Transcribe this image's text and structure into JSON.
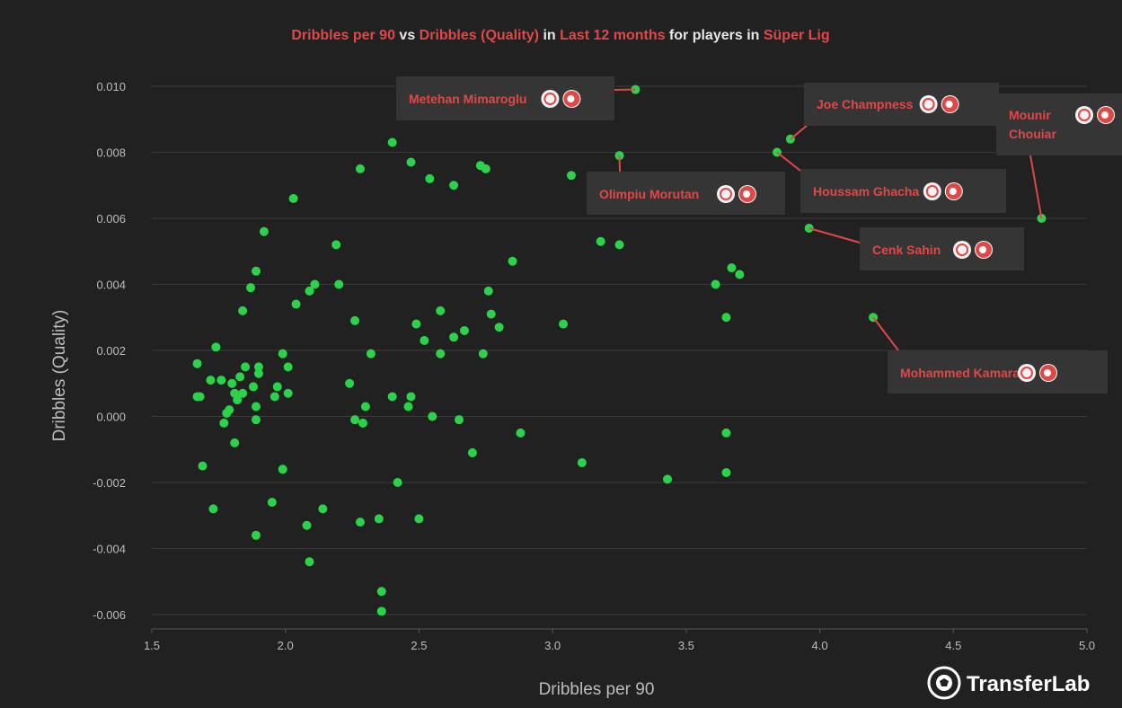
{
  "title": {
    "parts": [
      {
        "text": "Dribbles per 90",
        "accent": true
      },
      {
        "text": " vs ",
        "accent": false
      },
      {
        "text": "Dribbles (Quality)",
        "accent": true
      },
      {
        "text": " in ",
        "accent": false
      },
      {
        "text": "Last 12 months",
        "accent": true
      },
      {
        "text": " for players in ",
        "accent": false
      },
      {
        "text": "Süper Lig",
        "accent": true
      }
    ]
  },
  "colors": {
    "background": "#212121",
    "accent": "#e04848",
    "point": "#2bd34a",
    "grid": "#3a3a3a",
    "text_muted": "#bdbdbd",
    "annotation_bg": "#353535"
  },
  "logo": {
    "text": "TransferLab",
    "icon": "soccer-ball-icon"
  },
  "chart_data": {
    "type": "scatter",
    "title": "Dribbles per 90 vs Dribbles (Quality) in Last 12 months for players in Süper Lig",
    "xlabel": "Dribbles per 90",
    "ylabel": "Dribbles (Quality)",
    "xlim": [
      1.5,
      5.0
    ],
    "ylim": [
      -0.0065,
      0.0104
    ],
    "xticks": [
      {
        "value": 1.5,
        "label": "1.5"
      },
      {
        "value": 2.0,
        "label": "2.0"
      },
      {
        "value": 2.5,
        "label": "2.5"
      },
      {
        "value": 3.0,
        "label": "3.0"
      },
      {
        "value": 3.5,
        "label": "3.5"
      },
      {
        "value": 4.0,
        "label": "4.0"
      },
      {
        "value": 4.5,
        "label": "4.5"
      },
      {
        "value": 5.0,
        "label": "5.0"
      }
    ],
    "yticks": [
      {
        "value": 0.01,
        "label": "0.010"
      },
      {
        "value": 0.008,
        "label": "0.008"
      },
      {
        "value": 0.006,
        "label": "0.006"
      },
      {
        "value": 0.004,
        "label": "0.004"
      },
      {
        "value": 0.002,
        "label": "0.002"
      },
      {
        "value": 0.0,
        "label": "0.000"
      },
      {
        "value": -0.002,
        "label": "-0.002"
      },
      {
        "value": -0.004,
        "label": "-0.004"
      },
      {
        "value": -0.006,
        "label": "-0.006"
      }
    ],
    "grid": "horizontal",
    "points": [
      [
        1.67,
        0.0016
      ],
      [
        1.67,
        0.0006
      ],
      [
        1.68,
        0.0006
      ],
      [
        1.69,
        -0.0015
      ],
      [
        1.72,
        0.0011
      ],
      [
        1.73,
        -0.0028
      ],
      [
        1.74,
        0.0021
      ],
      [
        1.76,
        0.0011
      ],
      [
        1.77,
        -0.0002
      ],
      [
        1.78,
        0.0001
      ],
      [
        1.79,
        0.0002
      ],
      [
        1.8,
        0.001
      ],
      [
        1.81,
        -0.0008
      ],
      [
        1.81,
        0.0007
      ],
      [
        1.82,
        0.0005
      ],
      [
        1.83,
        0.0012
      ],
      [
        1.84,
        0.0032
      ],
      [
        1.84,
        0.0007
      ],
      [
        1.85,
        0.0015
      ],
      [
        1.87,
        0.0039
      ],
      [
        1.88,
        0.0009
      ],
      [
        1.89,
        0.0044
      ],
      [
        1.89,
        0.0003
      ],
      [
        1.89,
        -0.0001
      ],
      [
        1.89,
        -0.0036
      ],
      [
        1.9,
        0.0015
      ],
      [
        1.9,
        0.0013
      ],
      [
        1.92,
        0.0056
      ],
      [
        1.95,
        -0.0026
      ],
      [
        1.96,
        0.0006
      ],
      [
        1.97,
        0.0009
      ],
      [
        1.99,
        0.0019
      ],
      [
        1.99,
        -0.0016
      ],
      [
        2.01,
        0.0015
      ],
      [
        2.01,
        0.0007
      ],
      [
        2.03,
        0.0066
      ],
      [
        2.04,
        0.0034
      ],
      [
        2.08,
        -0.0033
      ],
      [
        2.09,
        0.0038
      ],
      [
        2.09,
        -0.0044
      ],
      [
        2.11,
        0.004
      ],
      [
        2.14,
        -0.0028
      ],
      [
        2.19,
        0.0052
      ],
      [
        2.2,
        0.004
      ],
      [
        2.24,
        0.001
      ],
      [
        2.26,
        0.0029
      ],
      [
        2.26,
        -0.0001
      ],
      [
        2.28,
        0.0075
      ],
      [
        2.28,
        -0.0032
      ],
      [
        2.29,
        -0.0002
      ],
      [
        2.3,
        0.0003
      ],
      [
        2.32,
        0.0019
      ],
      [
        2.35,
        -0.0031
      ],
      [
        2.36,
        -0.0053
      ],
      [
        2.36,
        -0.0059
      ],
      [
        2.4,
        0.0083
      ],
      [
        2.4,
        0.0006
      ],
      [
        2.42,
        -0.002
      ],
      [
        2.46,
        0.0003
      ],
      [
        2.47,
        0.0077
      ],
      [
        2.47,
        0.0006
      ],
      [
        2.49,
        0.0028
      ],
      [
        2.5,
        -0.0031
      ],
      [
        2.52,
        0.0023
      ],
      [
        2.54,
        0.0072
      ],
      [
        2.55,
        0.0
      ],
      [
        2.58,
        0.0032
      ],
      [
        2.58,
        0.0019
      ],
      [
        2.63,
        0.007
      ],
      [
        2.63,
        0.0024
      ],
      [
        2.65,
        -0.0001
      ],
      [
        2.67,
        0.0026
      ],
      [
        2.7,
        -0.0011
      ],
      [
        2.73,
        0.0076
      ],
      [
        2.74,
        0.0019
      ],
      [
        2.75,
        0.0075
      ],
      [
        2.76,
        0.0038
      ],
      [
        2.77,
        0.0031
      ],
      [
        2.8,
        0.0027
      ],
      [
        2.85,
        0.0047
      ],
      [
        2.88,
        -0.0005
      ],
      [
        3.04,
        0.0028
      ],
      [
        3.07,
        0.0073
      ],
      [
        3.11,
        -0.0014
      ],
      [
        3.18,
        0.0053
      ],
      [
        3.25,
        0.0052
      ],
      [
        3.25,
        0.0079
      ],
      [
        3.31,
        0.0099
      ],
      [
        3.43,
        -0.0019
      ],
      [
        3.61,
        0.004
      ],
      [
        3.65,
        0.003
      ],
      [
        3.65,
        -0.0005
      ],
      [
        3.65,
        -0.0017
      ],
      [
        3.67,
        0.0045
      ],
      [
        3.7,
        0.0043
      ],
      [
        3.84,
        0.008
      ],
      [
        3.89,
        0.0084
      ],
      [
        3.96,
        0.0057
      ],
      [
        4.2,
        0.003
      ],
      [
        4.83,
        0.006
      ]
    ],
    "annotations": [
      {
        "name": "Metehan Mimaroglu",
        "x": 3.31,
        "y": 0.0099
      },
      {
        "name": "Joe Champness",
        "x": 3.89,
        "y": 0.0084
      },
      {
        "name": "Mounir\nChouiar",
        "x": 4.83,
        "y": 0.006
      },
      {
        "name": "Olimpiu Morutan",
        "x": 3.25,
        "y": 0.0079
      },
      {
        "name": "Houssam Ghacha",
        "x": 3.84,
        "y": 0.008
      },
      {
        "name": "Cenk Sahin",
        "x": 3.96,
        "y": 0.0057
      },
      {
        "name": "Mohammed Kamara",
        "x": 4.2,
        "y": 0.003
      }
    ]
  }
}
